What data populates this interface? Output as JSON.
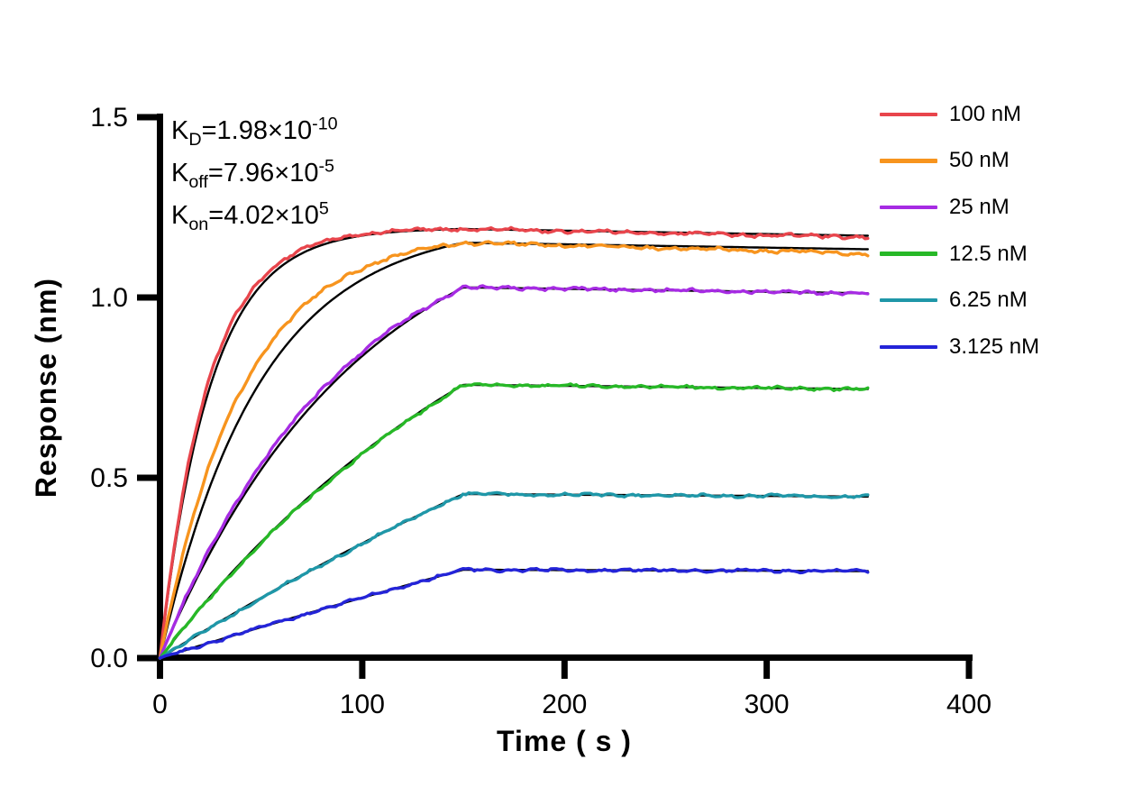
{
  "chart_data": {
    "type": "line",
    "title": "",
    "xlabel": "Time ( s )",
    "ylabel": "Response (nm)",
    "xlim": [
      0,
      400
    ],
    "ylim": [
      0.0,
      1.5
    ],
    "x_tick_labels": [
      "0",
      "100",
      "200",
      "300",
      "400"
    ],
    "x_tick_values": [
      0,
      100,
      200,
      300,
      400
    ],
    "y_tick_labels": [
      "0.0",
      "0.5",
      "1.0",
      "1.5"
    ],
    "y_tick_values": [
      0.0,
      0.5,
      1.0,
      1.5
    ],
    "grid": false,
    "legend_position": "right-outside",
    "association_end_s": 150,
    "curve_end_s": 350,
    "kon": 402000,
    "koff": 7.96e-05,
    "fit_color": "#000000",
    "series": [
      {
        "name": "100 nM",
        "conc_nM": 100,
        "color": "#E8454C",
        "plateau_nm": 1.19,
        "kobs": 0.0403,
        "lead": 1.06,
        "droop": 2e-05,
        "noise_nm": 0.0055
      },
      {
        "name": "50 nM",
        "conc_nM": 50,
        "color": "#F7941E",
        "plateau_nm": 1.152,
        "kobs": 0.0202,
        "lead": 1.22,
        "droop": 6e-05,
        "noise_nm": 0.0055
      },
      {
        "name": "25 nM",
        "conc_nM": 25,
        "color": "#A62BE3",
        "plateau_nm": 1.028,
        "kobs": 0.0101,
        "lead": 1.09,
        "droop": 0.0,
        "noise_nm": 0.005
      },
      {
        "name": "12.5 nM",
        "conc_nM": 12.5,
        "color": "#27B827",
        "plateau_nm": 0.758,
        "kobs": 0.0053,
        "lead": 0.95,
        "droop": 0.0,
        "noise_nm": 0.0045
      },
      {
        "name": "6.25 nM",
        "conc_nM": 6.25,
        "color": "#1F97A8",
        "plateau_nm": 0.455,
        "kobs": 0.002,
        "lead": 0.93,
        "droop": 0.0,
        "noise_nm": 0.0045
      },
      {
        "name": "3.125 nM",
        "conc_nM": 3.125,
        "color": "#2424D8",
        "plateau_nm": 0.245,
        "kobs": 0.001,
        "lead": 0.95,
        "droop": 0.0,
        "noise_nm": 0.0045
      }
    ],
    "annotations": [
      {
        "k_base": "K",
        "k_sub": "D",
        "value": "=1.98×10",
        "exp": "-10"
      },
      {
        "k_base": "K",
        "k_sub": "off",
        "value": "=7.96×10",
        "exp": "-5"
      },
      {
        "k_base": "K",
        "k_sub": "on",
        "value": "=4.02×10",
        "exp": "5"
      }
    ]
  }
}
